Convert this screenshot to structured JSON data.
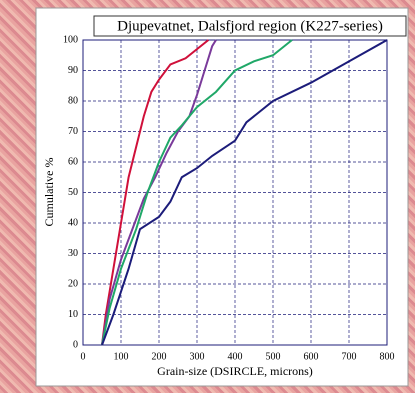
{
  "chart_data": {
    "type": "line",
    "title": "Djupevatnet, Dalsfjord region (K227-series)",
    "x_label": "Grain-size (DSIRCLE, microns)",
    "y_label": "Cumulative %",
    "xlim": [
      0,
      800
    ],
    "xticks": [
      0,
      100,
      200,
      300,
      400,
      500,
      600,
      700,
      800
    ],
    "ylim": [
      0,
      100
    ],
    "yticks": [
      0,
      10,
      20,
      30,
      40,
      50,
      60,
      70,
      80,
      90,
      100
    ],
    "grid": true,
    "series": [
      {
        "color": "#d0103a",
        "x": [
          50,
          60,
          80,
          100,
          120,
          140,
          160,
          180,
          200,
          230,
          270,
          300,
          330
        ],
        "values": [
          0,
          10,
          25,
          40,
          55,
          65,
          75,
          83,
          87,
          92,
          94,
          97,
          100
        ]
      },
      {
        "color": "#7a3a9a",
        "x": [
          50,
          70,
          100,
          130,
          160,
          190,
          220,
          250,
          280,
          300,
          320,
          340,
          350
        ],
        "values": [
          0,
          15,
          28,
          38,
          48,
          55,
          63,
          70,
          75,
          82,
          90,
          98,
          100
        ]
      },
      {
        "color": "#20a868",
        "x": [
          50,
          70,
          100,
          140,
          170,
          200,
          230,
          260,
          300,
          350,
          400,
          450,
          500,
          530,
          550
        ],
        "values": [
          0,
          12,
          25,
          38,
          50,
          60,
          68,
          72,
          78,
          83,
          90,
          93,
          95,
          98,
          100
        ]
      },
      {
        "color": "#1c1c7a",
        "x": [
          50,
          80,
          120,
          150,
          200,
          230,
          260,
          300,
          340,
          400,
          430,
          500,
          600,
          700,
          800
        ],
        "values": [
          0,
          10,
          25,
          38,
          42,
          47,
          55,
          58,
          62,
          67,
          73,
          80,
          86,
          93,
          100
        ]
      }
    ]
  }
}
